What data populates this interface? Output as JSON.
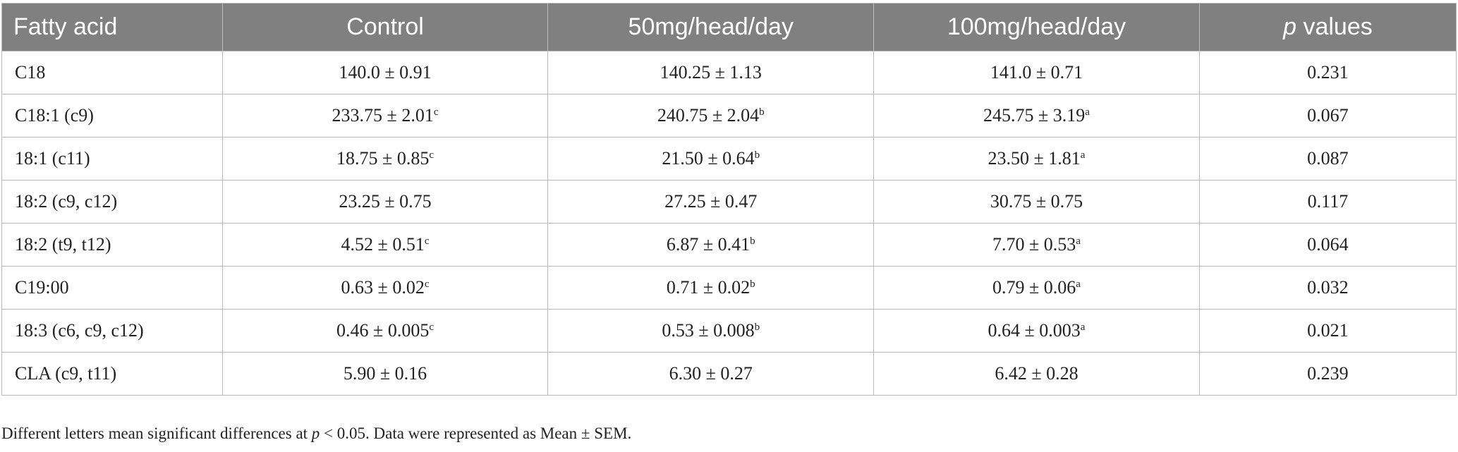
{
  "table": {
    "header": {
      "fatty_acid": "Fatty acid",
      "control": "Control",
      "dose50": "50mg/head/day",
      "dose100": "100mg/head/day",
      "p_italic": "p",
      "p_rest": " values"
    },
    "rows": [
      {
        "name": "C18",
        "control": {
          "value": "140.0 ± 0.91",
          "sup": ""
        },
        "dose50": {
          "value": "140.25 ± 1.13",
          "sup": ""
        },
        "dose100": {
          "value": "141.0 ± 0.71",
          "sup": ""
        },
        "p": "0.231"
      },
      {
        "name": "C18:1 (c9)",
        "control": {
          "value": "233.75 ± 2.01",
          "sup": "c"
        },
        "dose50": {
          "value": "240.75 ± 2.04",
          "sup": "b"
        },
        "dose100": {
          "value": "245.75 ± 3.19",
          "sup": "a"
        },
        "p": "0.067"
      },
      {
        "name": "18:1 (c11)",
        "control": {
          "value": "18.75 ± 0.85",
          "sup": "c"
        },
        "dose50": {
          "value": "21.50 ± 0.64",
          "sup": "b"
        },
        "dose100": {
          "value": "23.50 ± 1.81",
          "sup": "a"
        },
        "p": "0.087"
      },
      {
        "name": "18:2 (c9, c12)",
        "control": {
          "value": "23.25 ± 0.75",
          "sup": ""
        },
        "dose50": {
          "value": "27.25 ± 0.47",
          "sup": ""
        },
        "dose100": {
          "value": "30.75 ± 0.75",
          "sup": ""
        },
        "p": "0.117"
      },
      {
        "name": "18:2 (t9, t12)",
        "control": {
          "value": "4.52 ± 0.51",
          "sup": "c"
        },
        "dose50": {
          "value": "6.87 ± 0.41",
          "sup": "b"
        },
        "dose100": {
          "value": "7.70 ± 0.53",
          "sup": "a"
        },
        "p": "0.064"
      },
      {
        "name": "C19:00",
        "control": {
          "value": "0.63 ± 0.02",
          "sup": "c"
        },
        "dose50": {
          "value": "0.71 ± 0.02",
          "sup": "b"
        },
        "dose100": {
          "value": "0.79 ± 0.06",
          "sup": "a"
        },
        "p": "0.032"
      },
      {
        "name": "18:3 (c6, c9, c12)",
        "control": {
          "value": "0.46 ± 0.005",
          "sup": "c"
        },
        "dose50": {
          "value": "0.53 ± 0.008",
          "sup": "b"
        },
        "dose100": {
          "value": "0.64 ± 0.003",
          "sup": "a"
        },
        "p": "0.021"
      },
      {
        "name": "CLA (c9, t11)",
        "control": {
          "value": "5.90 ± 0.16",
          "sup": ""
        },
        "dose50": {
          "value": "6.30 ± 0.27",
          "sup": ""
        },
        "dose100": {
          "value": "6.42 ± 0.28",
          "sup": ""
        },
        "p": "0.239"
      }
    ]
  },
  "footnote": {
    "before": "Different letters mean significant differences at ",
    "p_italic": "p",
    "after": " < 0.05. Data were represented as Mean ± SEM."
  },
  "colors": {
    "header_background": "#808080",
    "header_text": "#ffffff",
    "grid_line": "#b8b8b8"
  }
}
